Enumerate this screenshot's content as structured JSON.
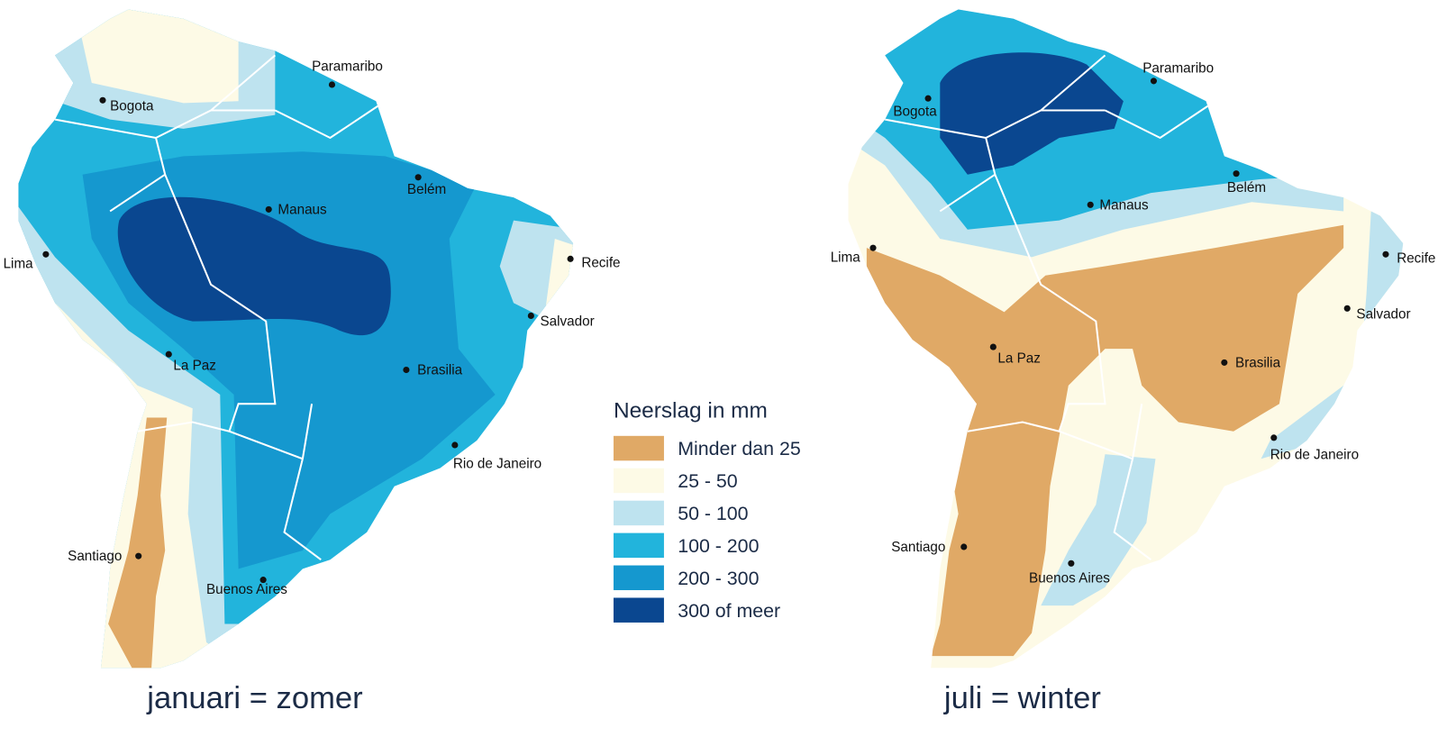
{
  "maps": [
    {
      "caption": "januari = zomer",
      "cities": [
        {
          "label": "Bogota"
        },
        {
          "label": "Paramaribo"
        },
        {
          "label": "Manaus"
        },
        {
          "label": "Belém"
        },
        {
          "label": "Lima"
        },
        {
          "label": "Recife"
        },
        {
          "label": "Salvador"
        },
        {
          "label": "La Paz"
        },
        {
          "label": "Brasilia"
        },
        {
          "label": "Rio de Janeiro"
        },
        {
          "label": "Santiago"
        },
        {
          "label": "Buenos Aires"
        }
      ]
    },
    {
      "caption": "juli = winter",
      "cities": [
        {
          "label": "Bogota"
        },
        {
          "label": "Paramaribo"
        },
        {
          "label": "Manaus"
        },
        {
          "label": "Belém"
        },
        {
          "label": "Lima"
        },
        {
          "label": "Recife"
        },
        {
          "label": "Salvador"
        },
        {
          "label": "La Paz"
        },
        {
          "label": "Brasilia"
        },
        {
          "label": "Rio de Janeiro"
        },
        {
          "label": "Santiago"
        },
        {
          "label": "Buenos Aires"
        }
      ]
    }
  ],
  "legend": {
    "title": "Neerslag in mm",
    "items": [
      {
        "label": "Minder dan 25",
        "color": "#e0a966"
      },
      {
        "label": "25 - 50",
        "color": "#fdfae6"
      },
      {
        "label": "50 - 100",
        "color": "#bee3ef"
      },
      {
        "label": "100 - 200",
        "color": "#22b4dc"
      },
      {
        "label": "200 - 300",
        "color": "#1598cf"
      },
      {
        "label": "300 of meer",
        "color": "#0a4790"
      }
    ]
  }
}
